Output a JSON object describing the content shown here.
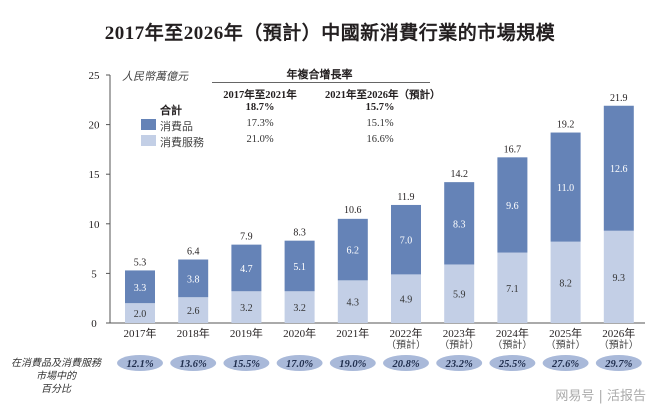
{
  "chart_data": {
    "type": "bar",
    "stacked": true,
    "title": "2017年至2026年（預計）中國新消費行業的市場規模",
    "unit_label": "人民幣萬億元",
    "ylim": [
      0,
      25
    ],
    "yticks": [
      0,
      5,
      10,
      15,
      20,
      25
    ],
    "categories": [
      "2017年",
      "2018年",
      "2019年",
      "2020年",
      "2021年",
      "2022年",
      "2023年",
      "2024年",
      "2025年",
      "2026年"
    ],
    "forecast_note": "（預計）",
    "forecast_flags": [
      false,
      false,
      false,
      false,
      false,
      true,
      true,
      true,
      true,
      true
    ],
    "series": [
      {
        "name": "消費服務",
        "color": "#c3cfe6",
        "values": [
          2.0,
          2.6,
          3.2,
          3.2,
          4.3,
          4.9,
          5.9,
          7.1,
          8.2,
          9.3
        ]
      },
      {
        "name": "消費品",
        "color": "#6583b7",
        "values": [
          3.3,
          3.8,
          4.7,
          5.1,
          6.2,
          7.0,
          8.3,
          9.6,
          11.0,
          12.6
        ]
      }
    ],
    "totals": [
      5.3,
      6.4,
      7.9,
      8.3,
      10.6,
      11.9,
      14.2,
      16.7,
      19.2,
      21.9
    ],
    "share_label": [
      "在消費品及消費服務",
      "市場中的",
      "百分比"
    ],
    "share_values": [
      "12.1%",
      "13.6%",
      "15.5%",
      "17.0%",
      "19.0%",
      "20.8%",
      "23.2%",
      "25.5%",
      "27.6%",
      "29.7%"
    ],
    "cagr_table": {
      "header": "年複合增長率",
      "columns": [
        "2017年至2021年",
        "2021年至2026年（預計）"
      ],
      "rows": [
        {
          "label": "合計",
          "values": [
            "18.7%",
            "15.7%"
          ]
        },
        {
          "label": "消費品",
          "values": [
            "17.3%",
            "15.1%"
          ]
        },
        {
          "label": "消費服務",
          "values": [
            "21.0%",
            "16.6%"
          ]
        }
      ]
    },
    "grid": false,
    "legend": "top-left"
  },
  "watermark": "网易号 | 活报告"
}
